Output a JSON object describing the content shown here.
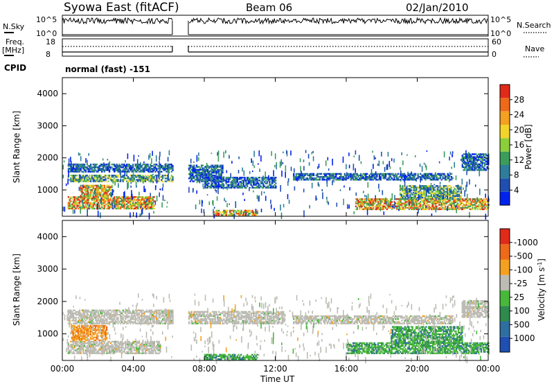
{
  "header": {
    "title": "Syowa East (fitACF)",
    "beam": "Beam 06",
    "date": "02/Jan/2010"
  },
  "strip_labels": {
    "nsky": "N.Sky",
    "nsearch": "N.Search",
    "freq_line1": "Freq.",
    "freq_line2": "[MHz]",
    "nave": "Nave",
    "cpid": "CPID",
    "cpid_value": "normal (fast) -151",
    "noise_ticks": [
      "10^5",
      "10^0"
    ],
    "noise_ticks_right": [
      "10^5",
      "10^0"
    ],
    "freq_ticks": [
      "18",
      "8"
    ],
    "nave_ticks": [
      "60",
      "0"
    ]
  },
  "chart_data": [
    {
      "type": "heatmap",
      "name": "power",
      "ylabel": "Slant Range [km]",
      "y_ticks": [
        1000,
        2000,
        3000,
        4000
      ],
      "ylim": [
        180,
        4500
      ],
      "x_ticks": [
        "00:00",
        "04:00",
        "08:00",
        "12:00",
        "16:00",
        "20:00",
        "00:00"
      ],
      "xlim_hours": [
        0,
        24
      ],
      "data_gap_hours": [
        6.2,
        7.1
      ],
      "colorbar": {
        "label": "Power [dB]",
        "ticks": [
          "4",
          "8",
          "12",
          "16",
          "20",
          "24",
          "28"
        ],
        "colors": [
          "#0022ee",
          "#1f4fb0",
          "#2e7d9a",
          "#3c9d5a",
          "#8ccf3a",
          "#f2d42a",
          "#f4a020",
          "#ee6a1a",
          "#e02a1a"
        ]
      },
      "bands": [
        {
          "t0": 0.3,
          "t1": 6.2,
          "r0": 1550,
          "r1": 1800,
          "level": "low"
        },
        {
          "t0": 0.3,
          "t1": 6.2,
          "r0": 1250,
          "r1": 1450,
          "level": "mid"
        },
        {
          "t0": 0.3,
          "t1": 5.2,
          "r0": 400,
          "r1": 780,
          "level": "high"
        },
        {
          "t0": 1.0,
          "t1": 2.8,
          "r0": 800,
          "r1": 1150,
          "level": "high"
        },
        {
          "t0": 7.1,
          "t1": 9.0,
          "r0": 1250,
          "r1": 1750,
          "level": "low"
        },
        {
          "t0": 8.0,
          "t1": 12.0,
          "r0": 1050,
          "r1": 1400,
          "level": "low"
        },
        {
          "t0": 13.0,
          "t1": 22.0,
          "r0": 1300,
          "r1": 1500,
          "level": "low"
        },
        {
          "t0": 16.5,
          "t1": 24.0,
          "r0": 380,
          "r1": 720,
          "level": "high"
        },
        {
          "t0": 19.0,
          "t1": 22.5,
          "r0": 700,
          "r1": 1150,
          "level": "mid"
        },
        {
          "t0": 22.5,
          "t1": 24.0,
          "r0": 1600,
          "r1": 2100,
          "level": "low"
        },
        {
          "t0": 8.5,
          "t1": 11.0,
          "r0": 200,
          "r1": 380,
          "level": "high"
        }
      ]
    },
    {
      "type": "heatmap",
      "name": "velocity",
      "ylabel": "Slant Range [km]",
      "y_ticks": [
        1000,
        2000,
        3000,
        4000
      ],
      "ylim": [
        180,
        4500
      ],
      "x_ticks": [
        "00:00",
        "04:00",
        "08:00",
        "12:00",
        "16:00",
        "20:00",
        "00:00"
      ],
      "xlabel": "Time UT",
      "colorbar": {
        "label": "Velocity [m s^-1]",
        "ticks": [
          "1000",
          "500",
          "100",
          "25",
          "-25",
          "-100",
          "-500",
          "-1000"
        ],
        "colors": [
          "#1f4fb0",
          "#2e6ea0",
          "#2f8a4e",
          "#48b83a",
          "#bcbcb4",
          "#f4a020",
          "#ee6a1a",
          "#e02a1a"
        ]
      },
      "bands": [
        {
          "t0": 0.3,
          "t1": 6.2,
          "r0": 1300,
          "r1": 1750,
          "level": "ground"
        },
        {
          "t0": 0.3,
          "t1": 5.5,
          "r0": 380,
          "r1": 780,
          "level": "ground"
        },
        {
          "t0": 0.5,
          "t1": 2.5,
          "r0": 780,
          "r1": 1250,
          "level": "neg"
        },
        {
          "t0": 7.1,
          "t1": 12.5,
          "r0": 1300,
          "r1": 1700,
          "level": "ground"
        },
        {
          "t0": 13.0,
          "t1": 22.0,
          "r0": 1300,
          "r1": 1550,
          "level": "ground"
        },
        {
          "t0": 16.0,
          "t1": 24.0,
          "r0": 380,
          "r1": 720,
          "level": "pos"
        },
        {
          "t0": 18.5,
          "t1": 22.5,
          "r0": 700,
          "r1": 1200,
          "level": "pos"
        },
        {
          "t0": 8.0,
          "t1": 11.0,
          "r0": 200,
          "r1": 380,
          "level": "pos"
        },
        {
          "t0": 22.5,
          "t1": 24.0,
          "r0": 1500,
          "r1": 2000,
          "level": "ground"
        }
      ]
    }
  ]
}
